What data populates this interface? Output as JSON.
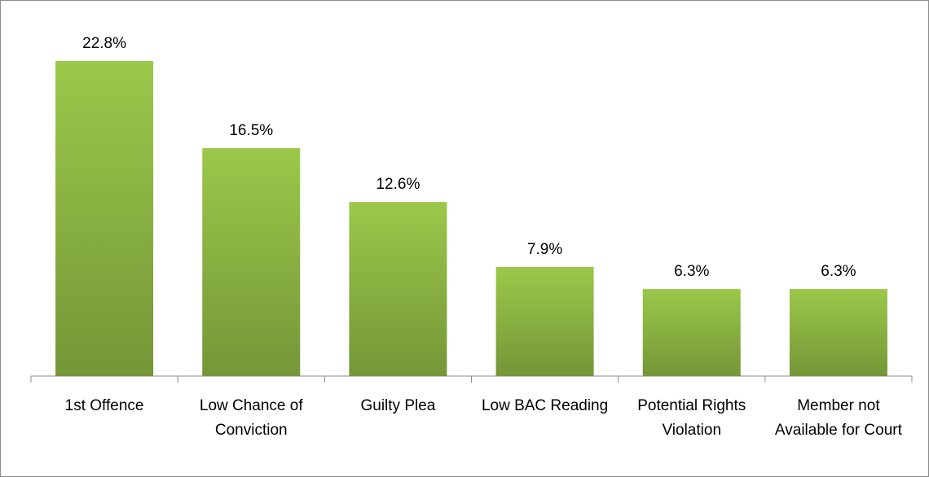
{
  "chart_data": {
    "type": "bar",
    "categories": [
      "1st Offence",
      "Low Chance of Conviction",
      "Guilty Plea",
      "Low BAC Reading",
      "Potential Rights Violation",
      "Member not Available for Court"
    ],
    "values": [
      22.8,
      16.5,
      12.6,
      7.9,
      6.3,
      6.3
    ],
    "value_labels": [
      "22.8%",
      "16.5%",
      "12.6%",
      "7.9%",
      "6.3%",
      "6.3%"
    ],
    "color": "#9bc84a"
  }
}
